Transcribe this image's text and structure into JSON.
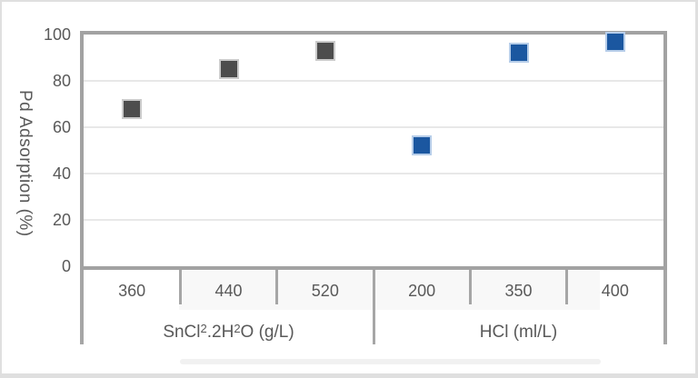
{
  "chart_data": {
    "type": "scatter",
    "title": "",
    "ylabel": "Pd Adsorption (%)",
    "xlabel": "",
    "ylim": [
      0,
      100
    ],
    "yticks": [
      0,
      20,
      40,
      60,
      80,
      100
    ],
    "grid": "horizontal",
    "legend_position": "none",
    "marker_shape": "square",
    "x_groups": [
      {
        "label": "SnCl2.2H2O (g/L)",
        "label_parts": [
          {
            "t": "SnCl"
          },
          {
            "t": "2",
            "sup": true
          },
          {
            "t": ".2H"
          },
          {
            "t": "2",
            "sup": true
          },
          {
            "t": "O (g/L)"
          }
        ],
        "categories": [
          "360",
          "440",
          "520"
        ]
      },
      {
        "label": "HCl (ml/L)",
        "label_parts": [
          {
            "t": "HCl (ml/L)"
          }
        ],
        "categories": [
          "200",
          "350",
          "400"
        ]
      }
    ],
    "series": [
      {
        "name": "SnCl2.2H2O (g/L)",
        "group": 0,
        "color": "#4d4d4d",
        "outline": "#cbcbcb",
        "values": [
          68,
          85,
          93
        ]
      },
      {
        "name": "HCl (ml/L)",
        "group": 1,
        "color": "#1b57a0",
        "outline": "#b6cde9",
        "values": [
          52,
          92,
          97
        ]
      }
    ],
    "colors": {
      "axis": "#a2a2a2",
      "gridline": "#e8e8e8",
      "text": "#595959",
      "frame": "#dfdfdf",
      "highlight_band": "#f8f8f8"
    }
  }
}
